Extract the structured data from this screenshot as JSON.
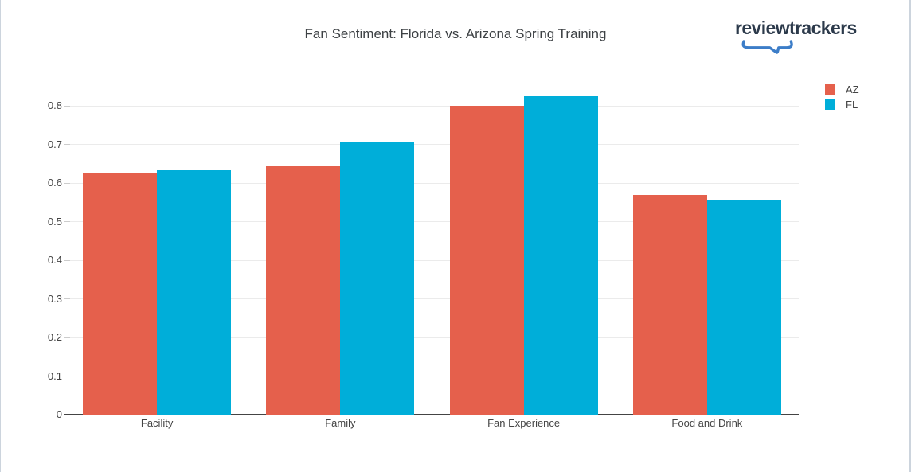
{
  "logo": {
    "text": "reviewtrackers",
    "brace_color": "#3c7dc8"
  },
  "chart_data": {
    "type": "bar",
    "title": "Fan Sentiment: Florida vs. Arizona Spring Training",
    "categories": [
      "Facility",
      "Family",
      "Fan Experience",
      "Food and Drink"
    ],
    "series": [
      {
        "name": "AZ",
        "color": "#e5604c",
        "values": [
          0.627,
          0.643,
          0.8,
          0.57
        ]
      },
      {
        "name": "FL",
        "color": "#00aed9",
        "values": [
          0.634,
          0.705,
          0.825,
          0.556
        ]
      }
    ],
    "ylim": [
      0,
      0.86
    ],
    "yticks": [
      "0",
      "0.1",
      "0.2",
      "0.3",
      "0.4",
      "0.5",
      "0.6",
      "0.7",
      "0.8"
    ],
    "grid": true,
    "legend_position": "top-right",
    "xlabel": "",
    "ylabel": ""
  }
}
